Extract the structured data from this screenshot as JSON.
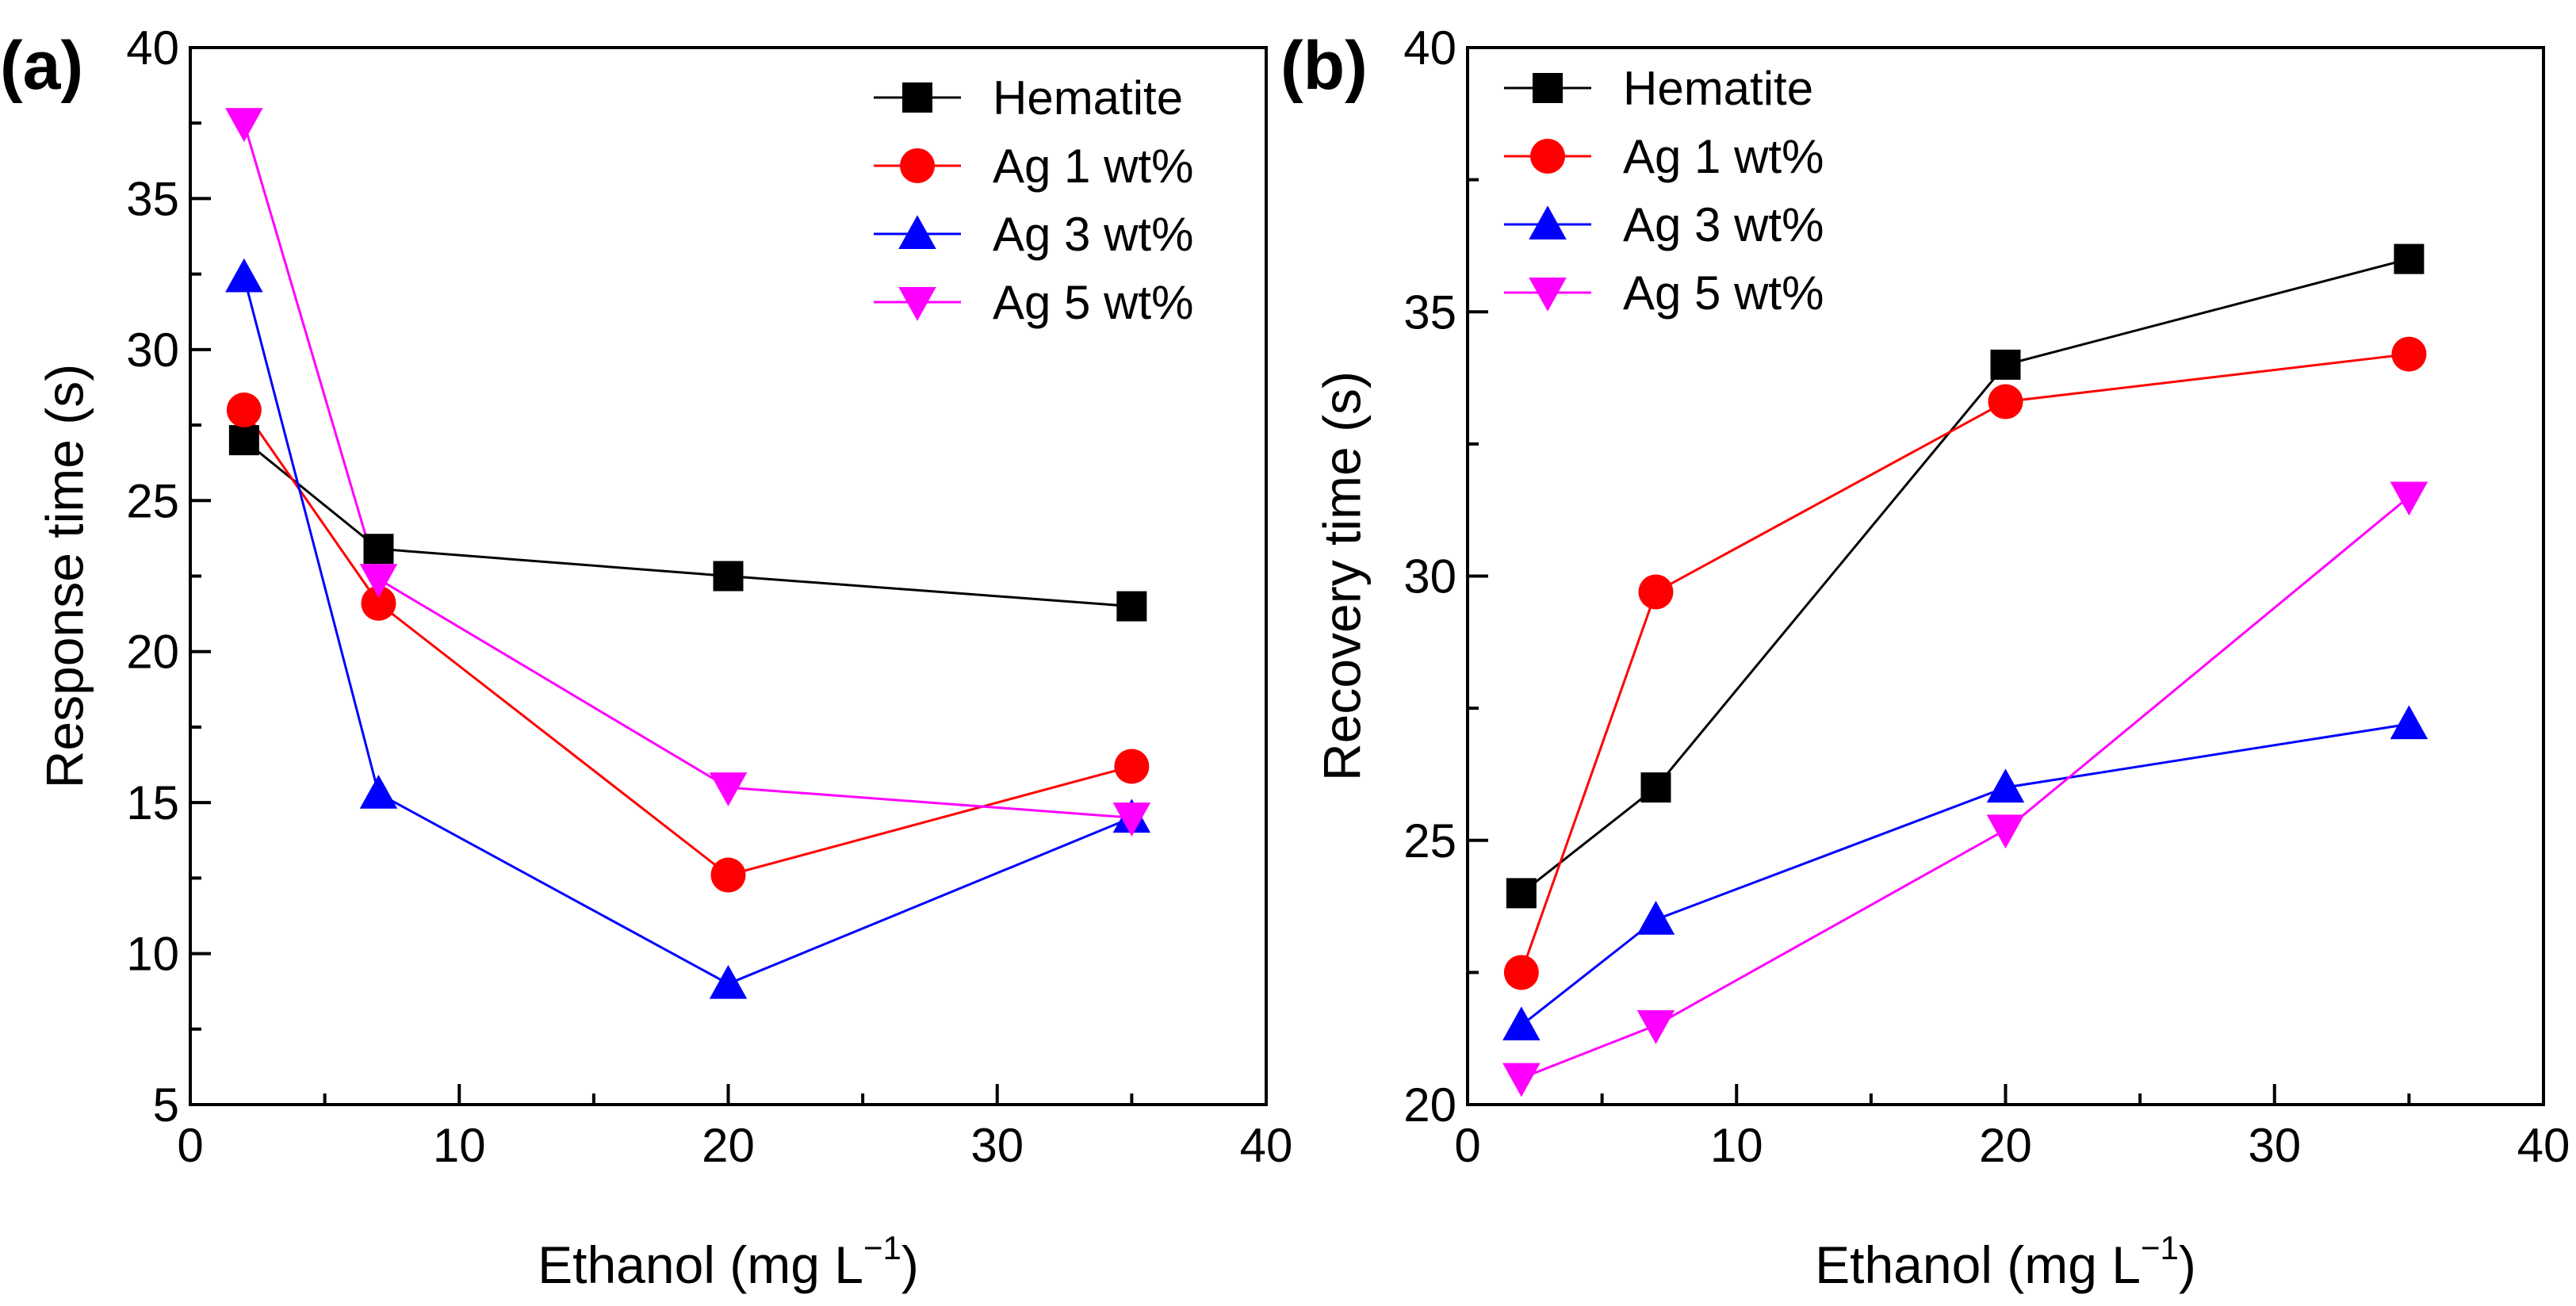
{
  "chart_data": [
    {
      "type": "line",
      "panel_label": "(a)",
      "title": "",
      "xlabel": "Ethanol (mg L",
      "xlabel_sup": "−1",
      "xlabel_close": ")",
      "ylabel": "Response time (s)",
      "xlim": [
        0,
        40
      ],
      "ylim": [
        5,
        40
      ],
      "xticks": [
        0,
        10,
        20,
        30,
        40
      ],
      "yticks": [
        5,
        10,
        15,
        20,
        25,
        30,
        35,
        40
      ],
      "legend_position": "top-right",
      "x": [
        2,
        7,
        20,
        35
      ],
      "series": [
        {
          "name": "Hematite",
          "marker": "square",
          "color": "#000000",
          "values": [
            27.0,
            23.4,
            22.5,
            21.5
          ]
        },
        {
          "name": "Ag 1 wt%",
          "marker": "circle",
          "color": "#ff0000",
          "values": [
            28.0,
            21.6,
            12.6,
            16.2
          ]
        },
        {
          "name": "Ag 3 wt%",
          "marker": "triangle-up",
          "color": "#0000ff",
          "values": [
            32.4,
            15.3,
            9.0,
            14.5
          ]
        },
        {
          "name": "Ag 5 wt%",
          "marker": "triangle-down",
          "color": "#ff00ff",
          "values": [
            37.5,
            22.4,
            15.5,
            14.5
          ]
        }
      ]
    },
    {
      "type": "line",
      "panel_label": "(b)",
      "title": "",
      "xlabel": "Ethanol (mg L",
      "xlabel_sup": "−1",
      "xlabel_close": ")",
      "ylabel": "Recovery time (s)",
      "xlim": [
        0,
        40
      ],
      "ylim": [
        20,
        40
      ],
      "xticks": [
        0,
        10,
        20,
        30,
        40
      ],
      "yticks": [
        20,
        25,
        30,
        35,
        40
      ],
      "legend_position": "top-left",
      "x": [
        2,
        7,
        20,
        35
      ],
      "series": [
        {
          "name": "Hematite",
          "marker": "square",
          "color": "#000000",
          "values": [
            24.0,
            26.0,
            34.0,
            36.0
          ]
        },
        {
          "name": "Ag 1 wt%",
          "marker": "circle",
          "color": "#ff0000",
          "values": [
            22.5,
            29.7,
            33.3,
            34.2
          ]
        },
        {
          "name": "Ag 3 wt%",
          "marker": "triangle-up",
          "color": "#0000ff",
          "values": [
            21.5,
            23.5,
            26.0,
            27.2
          ]
        },
        {
          "name": "Ag 5 wt%",
          "marker": "triangle-down",
          "color": "#ff00ff",
          "values": [
            20.5,
            21.5,
            25.2,
            31.5
          ]
        }
      ]
    }
  ]
}
